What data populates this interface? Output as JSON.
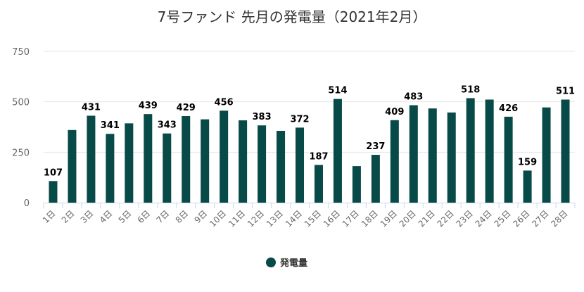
{
  "chart_data": {
    "type": "bar",
    "title": "7号ファンド 先月の発電量（2021年2月）",
    "categories": [
      "1日",
      "2日",
      "3日",
      "4日",
      "5日",
      "6日",
      "7日",
      "8日",
      "9日",
      "10日",
      "11日",
      "12日",
      "13日",
      "14日",
      "15日",
      "16日",
      "17日",
      "18日",
      "19日",
      "20日",
      "21日",
      "22日",
      "23日",
      "24日",
      "25日",
      "26日",
      "27日",
      "28日"
    ],
    "series": [
      {
        "name": "発電量",
        "values": [
          107,
          360,
          431,
          341,
          393,
          439,
          343,
          429,
          413,
          456,
          408,
          383,
          356,
          372,
          187,
          514,
          181,
          237,
          409,
          483,
          467,
          447,
          518,
          511,
          426,
          159,
          472,
          511
        ],
        "data_labels": [
          "107",
          "",
          "431",
          "341",
          "",
          "439",
          "343",
          "429",
          "",
          "456",
          "",
          "383",
          "",
          "372",
          "187",
          "514",
          "",
          "237",
          "409",
          "483",
          "",
          "",
          "518",
          "",
          "426",
          "159",
          "",
          "511"
        ]
      }
    ],
    "ylim": [
      0,
      750
    ],
    "yticks": [
      0,
      250,
      500,
      750
    ],
    "grid": true,
    "legend_position": "bottom-center",
    "colors": {
      "bar": "#074a48"
    }
  }
}
